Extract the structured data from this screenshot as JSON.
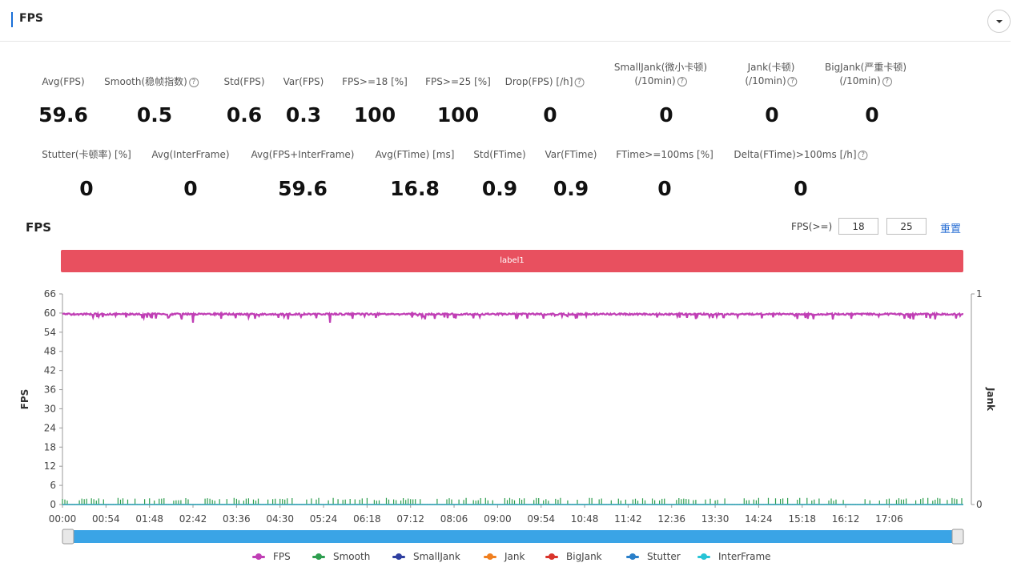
{
  "header": {
    "title": "FPS"
  },
  "stats_row1": [
    {
      "label": "Avg(FPS)",
      "value": "59.6",
      "help": false
    },
    {
      "label": "Smooth(稳帧指数)",
      "value": "0.5",
      "help": true
    },
    {
      "label": "Std(FPS)",
      "value": "0.6",
      "help": false
    },
    {
      "label": "Var(FPS)",
      "value": "0.3",
      "help": false
    },
    {
      "label": "FPS>=18 [%]",
      "value": "100",
      "help": false
    },
    {
      "label": "FPS>=25 [%]",
      "value": "100",
      "help": false
    },
    {
      "label": "Drop(FPS) [/h]",
      "value": "0",
      "help": true
    },
    {
      "label": "SmallJank(微小卡顿)",
      "label2": "(/10min)",
      "value": "0",
      "help": true
    },
    {
      "label": "Jank(卡顿)",
      "label2": "(/10min)",
      "value": "0",
      "help": true
    },
    {
      "label": "BigJank(严重卡顿)",
      "label2": "(/10min)",
      "value": "0",
      "help": true
    }
  ],
  "stats_row2": [
    {
      "label": "Stutter(卡顿率) [%]",
      "value": "0",
      "help": false
    },
    {
      "label": "Avg(InterFrame)",
      "value": "0",
      "help": false
    },
    {
      "label": "Avg(FPS+InterFrame)",
      "value": "59.6",
      "help": false
    },
    {
      "label": "Avg(FTime) [ms]",
      "value": "16.8",
      "help": false
    },
    {
      "label": "Std(FTime)",
      "value": "0.9",
      "help": false
    },
    {
      "label": "Var(FTime)",
      "value": "0.9",
      "help": false
    },
    {
      "label": "FTime>=100ms [%]",
      "value": "0",
      "help": false
    },
    {
      "label": "Delta(FTime)>100ms [/h]",
      "value": "0",
      "help": true
    }
  ],
  "chart_controls": {
    "title": "FPS",
    "filter_label": "FPS(>=)",
    "threshold_1": "18",
    "threshold_2": "25",
    "reset_label": "重置",
    "segment_label": "label1"
  },
  "chart_data": {
    "type": "line",
    "ylabel": "FPS",
    "y2label": "Jank",
    "ylim": [
      0,
      66
    ],
    "yticks": [
      "0",
      "6",
      "12",
      "18",
      "24",
      "30",
      "36",
      "42",
      "48",
      "54",
      "60",
      "66"
    ],
    "y2lim": [
      0,
      1
    ],
    "y2ticks": [
      "0",
      "1"
    ],
    "xticks": [
      "00:00",
      "00:54",
      "01:48",
      "02:42",
      "03:36",
      "04:30",
      "05:24",
      "06:18",
      "07:12",
      "08:06",
      "09:00",
      "09:54",
      "10:48",
      "11:42",
      "12:36",
      "13:30",
      "14:24",
      "15:18",
      "16:12",
      "17:06"
    ],
    "x_end_seconds": 1118,
    "series": [
      {
        "name": "FPS",
        "color": "#c03fb5",
        "typical_value": 59.6,
        "min_value": 57,
        "max_value": 60
      },
      {
        "name": "Smooth",
        "color": "#2e9e4f",
        "typical_value": 0.5
      },
      {
        "name": "SmallJank",
        "color": "#2f3fa0",
        "typical_value": 0
      },
      {
        "name": "Jank",
        "color": "#f07f1f",
        "typical_value": 0
      },
      {
        "name": "BigJank",
        "color": "#d9342b",
        "typical_value": 0
      },
      {
        "name": "Stutter",
        "color": "#2a7fc9",
        "typical_value": 0
      },
      {
        "name": "InterFrame",
        "color": "#27c4d6",
        "typical_value": 0
      }
    ]
  }
}
